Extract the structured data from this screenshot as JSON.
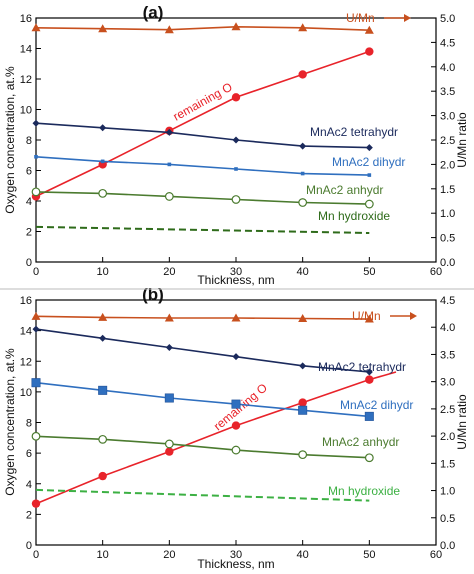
{
  "chart_data": [
    {
      "type": "line",
      "panel_label": "(a)",
      "xlabel": "Thickness, nm",
      "ylabel": "Oxygen concentration, at.%",
      "y2label": "U/Mn ratio",
      "xlim": [
        0,
        60
      ],
      "ylim": [
        0,
        16
      ],
      "y2lim": [
        0,
        5
      ],
      "xticks": [
        0,
        10,
        20,
        30,
        40,
        50,
        60
      ],
      "yticks": [
        0,
        2,
        4,
        6,
        8,
        10,
        12,
        14,
        16
      ],
      "y2ticks": [
        "0.0",
        "0.5",
        "1.0",
        "1.5",
        "2.0",
        "2.5",
        "3.0",
        "3.5",
        "4.0",
        "4.5",
        "5.0"
      ],
      "grid": false,
      "legend": "inline labels",
      "series": [
        {
          "name": "U/Mn",
          "axis": "right",
          "color": "#c8501e",
          "marker": "triangle",
          "dash": false,
          "arrow": true,
          "x": [
            0,
            10,
            20,
            30,
            40,
            50
          ],
          "y": [
            4.8,
            4.78,
            4.76,
            4.82,
            4.8,
            4.75
          ]
        },
        {
          "name": "remaining O",
          "axis": "left",
          "color": "#e8232a",
          "marker": "filled-circle",
          "dash": false,
          "x": [
            0,
            10,
            20,
            30,
            40,
            50
          ],
          "y": [
            4.3,
            6.4,
            8.6,
            10.8,
            12.3,
            13.8
          ]
        },
        {
          "name": "MnAc2 tetrahydr",
          "axis": "left",
          "color": "#1b2a5c",
          "marker": "diamond",
          "dash": false,
          "x": [
            0,
            10,
            20,
            30,
            40,
            50
          ],
          "y": [
            9.1,
            8.8,
            8.5,
            8.0,
            7.6,
            7.5
          ]
        },
        {
          "name": "MnAc2 dihydr",
          "axis": "left",
          "color": "#2f6fbf",
          "marker": "small-square",
          "dash": false,
          "x": [
            0,
            10,
            20,
            30,
            40,
            50
          ],
          "y": [
            6.9,
            6.6,
            6.4,
            6.1,
            5.8,
            5.7
          ]
        },
        {
          "name": "MnAc2 anhydr",
          "axis": "left",
          "color": "#4b7b2f",
          "marker": "open-circle",
          "dash": false,
          "x": [
            0,
            10,
            20,
            30,
            40,
            50
          ],
          "y": [
            4.6,
            4.5,
            4.3,
            4.1,
            3.9,
            3.8
          ]
        },
        {
          "name": "Mn hydroxide",
          "axis": "left",
          "color": "#2e6b1a",
          "marker": "none",
          "dash": true,
          "x": [
            0,
            50
          ],
          "y": [
            2.3,
            1.9
          ]
        }
      ]
    },
    {
      "type": "line",
      "panel_label": "(b)",
      "xlabel": "Thickness, nm",
      "ylabel": "Oxygen concentration, at.%",
      "y2label": "U/Mn ratio",
      "xlim": [
        0,
        60
      ],
      "ylim": [
        0,
        16
      ],
      "y2lim": [
        0,
        4.5
      ],
      "xticks": [
        0,
        10,
        20,
        30,
        40,
        50,
        60
      ],
      "yticks": [
        0,
        2,
        4,
        6,
        8,
        10,
        12,
        14,
        16
      ],
      "y2ticks": [
        "0.0",
        "0.5",
        "1.0",
        "1.5",
        "2.0",
        "2.5",
        "3.0",
        "3.5",
        "4.0",
        "4.5"
      ],
      "grid": false,
      "legend": "inline labels",
      "series": [
        {
          "name": "U/Mn",
          "axis": "right",
          "color": "#c8501e",
          "marker": "triangle",
          "dash": false,
          "arrow": true,
          "x": [
            0,
            10,
            20,
            30,
            40,
            50
          ],
          "y": [
            4.2,
            4.18,
            4.17,
            4.17,
            4.16,
            4.15
          ]
        },
        {
          "name": "remaining O",
          "axis": "left",
          "color": "#e8232a",
          "marker": "filled-circle",
          "dash": false,
          "x": [
            0,
            10,
            20,
            30,
            40,
            50,
            54
          ],
          "y": [
            2.7,
            4.5,
            6.1,
            7.8,
            9.3,
            10.8,
            11.3
          ]
        },
        {
          "name": "MnAc2 tetrahydr",
          "axis": "left",
          "color": "#1b2a5c",
          "marker": "diamond",
          "dash": false,
          "x": [
            0,
            10,
            20,
            30,
            40,
            50
          ],
          "y": [
            14.1,
            13.5,
            12.9,
            12.3,
            11.7,
            11.3
          ]
        },
        {
          "name": "MnAc2 dihydr",
          "axis": "left",
          "color": "#2f6fbf",
          "marker": "big-square",
          "dash": false,
          "x": [
            0,
            10,
            20,
            30,
            40,
            50
          ],
          "y": [
            10.6,
            10.1,
            9.6,
            9.2,
            8.8,
            8.4
          ]
        },
        {
          "name": "MnAc2 anhydr",
          "axis": "left",
          "color": "#4b7b2f",
          "marker": "open-circle",
          "dash": false,
          "x": [
            0,
            10,
            20,
            30,
            40,
            50
          ],
          "y": [
            7.1,
            6.9,
            6.6,
            6.2,
            5.9,
            5.7
          ]
        },
        {
          "name": "Mn hydroxide",
          "axis": "left",
          "color": "#3cb043",
          "marker": "none",
          "dash": true,
          "x": [
            0,
            50
          ],
          "y": [
            3.6,
            2.9
          ]
        }
      ]
    }
  ]
}
